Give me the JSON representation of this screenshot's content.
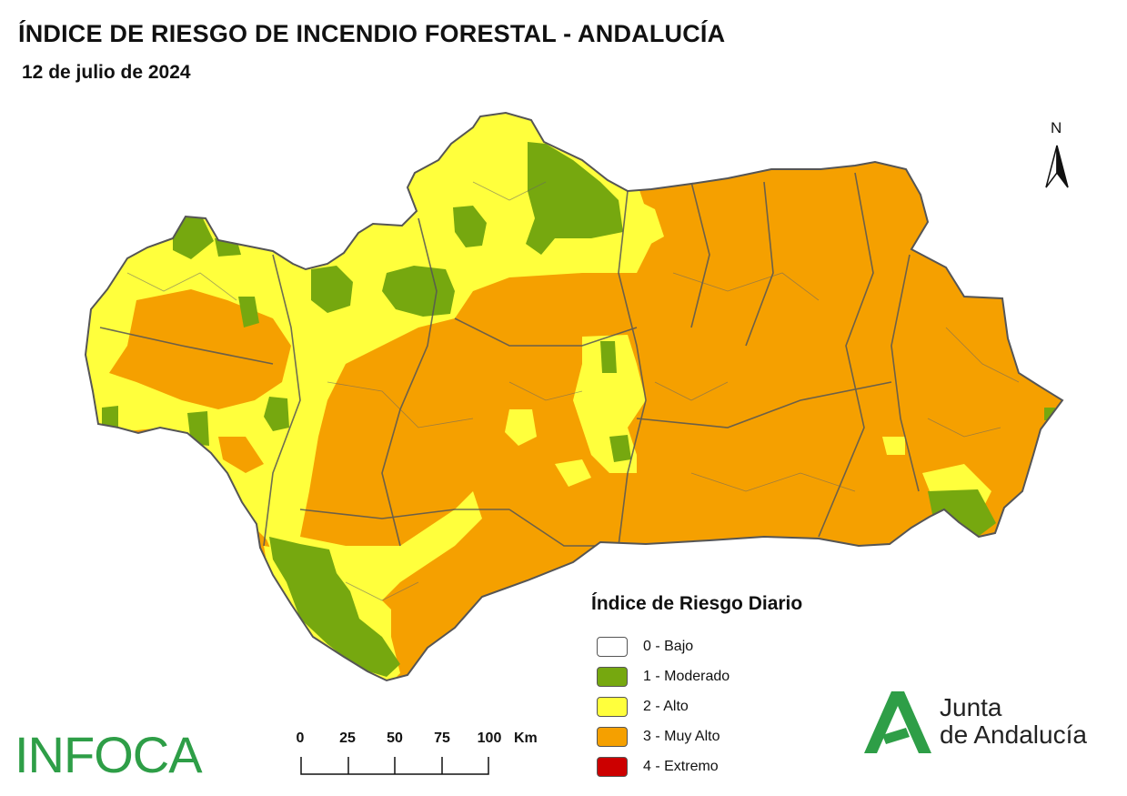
{
  "header": {
    "title": "ÍNDICE DE RIESGO DE INCENDIO FORESTAL - ANDALUCÍA",
    "date": "12 de julio de 2024"
  },
  "north_arrow": {
    "label": "N"
  },
  "legend": {
    "title": "Índice de Riesgo Diario",
    "items": [
      {
        "label": "0 - Bajo",
        "color": "#ffffff"
      },
      {
        "label": "1 - Moderado",
        "color": "#76a80f"
      },
      {
        "label": "2 - Alto",
        "color": "#ffff3c"
      },
      {
        "label": "3 - Muy Alto",
        "color": "#f5a000"
      },
      {
        "label": "4 - Extremo",
        "color": "#cc0000"
      }
    ]
  },
  "scale_bar": {
    "ticks": [
      "0",
      "25",
      "50",
      "75",
      "100"
    ],
    "unit": "Km"
  },
  "logos": {
    "infoca": "INFOCA",
    "junta_line1": "Junta",
    "junta_line2": "de Andalucía"
  },
  "map_colors": {
    "moderado": "#76a80f",
    "alto": "#ffff3c",
    "muy_alto": "#f5a000",
    "border": "#555555"
  }
}
